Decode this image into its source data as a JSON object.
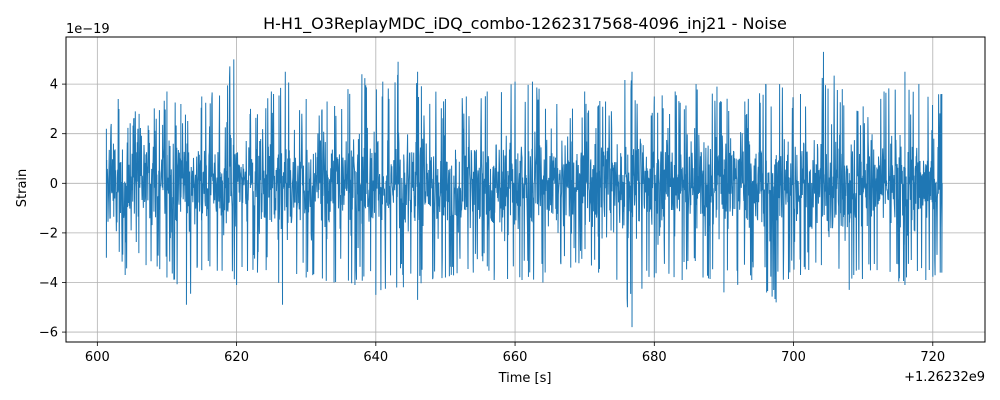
{
  "chart_data": {
    "type": "line",
    "title": "H-H1_O3ReplayMDC_iDQ_combo-1262317568-4096_inj21 - Noise",
    "xlabel": "Time [s]",
    "ylabel": "Strain",
    "x_offset_label": "+1.26232e9",
    "y_scale_label": "1e−19",
    "xlim": [
      595.5,
      727.5
    ],
    "ylim": [
      -6.4,
      5.9
    ],
    "x_ticks": [
      600,
      620,
      640,
      660,
      680,
      700,
      720
    ],
    "x_tick_labels": [
      "600",
      "620",
      "640",
      "660",
      "680",
      "700",
      "720"
    ],
    "y_ticks": [
      -6,
      -4,
      -2,
      0,
      2,
      4
    ],
    "y_tick_labels": [
      "−6",
      "−4",
      "−2",
      "0",
      "2",
      "4"
    ],
    "grid": true,
    "line_color": "#1f77b4",
    "series": [
      {
        "x_start": 601.3,
        "x_end": 721.3,
        "envelope_top": [
          [
            601.3,
            2.2
          ],
          [
            603,
            3.4
          ],
          [
            606,
            2.8
          ],
          [
            610,
            3.7
          ],
          [
            612,
            3.2
          ],
          [
            615,
            3.5
          ],
          [
            619.6,
            5.0
          ],
          [
            622,
            3.0
          ],
          [
            625,
            3.7
          ],
          [
            627,
            4.5
          ],
          [
            630,
            3.4
          ],
          [
            633,
            3.3
          ],
          [
            636,
            3.8
          ],
          [
            638,
            4.4
          ],
          [
            641,
            4.1
          ],
          [
            643.2,
            4.9
          ],
          [
            646,
            4.5
          ],
          [
            650,
            3.4
          ],
          [
            653,
            3.5
          ],
          [
            656,
            3.7
          ],
          [
            660,
            4.1
          ],
          [
            662.5,
            4.1
          ],
          [
            666,
            3.2
          ],
          [
            670,
            3.7
          ],
          [
            673,
            3.3
          ],
          [
            676.8,
            4.5
          ],
          [
            680,
            3.5
          ],
          [
            683,
            3.7
          ],
          [
            686,
            4.0
          ],
          [
            689,
            3.9
          ],
          [
            693,
            3.3
          ],
          [
            696,
            4.0
          ],
          [
            698,
            4.0
          ],
          [
            701,
            3.6
          ],
          [
            704.3,
            5.3
          ],
          [
            707,
            3.8
          ],
          [
            710,
            3.1
          ],
          [
            713,
            3.7
          ],
          [
            716,
            4.5
          ],
          [
            718,
            4.0
          ],
          [
            721.3,
            3.6
          ]
        ],
        "envelope_bottom": [
          [
            601.3,
            -3.0
          ],
          [
            604,
            -3.7
          ],
          [
            607,
            -3.3
          ],
          [
            610,
            -3.8
          ],
          [
            612.8,
            -4.9
          ],
          [
            615,
            -3.5
          ],
          [
            620,
            -4.1
          ],
          [
            623,
            -3.6
          ],
          [
            626.6,
            -4.9
          ],
          [
            630,
            -3.8
          ],
          [
            634,
            -4.0
          ],
          [
            637,
            -4.1
          ],
          [
            640,
            -4.5
          ],
          [
            643,
            -4.2
          ],
          [
            646,
            -4.7
          ],
          [
            650,
            -3.8
          ],
          [
            654,
            -3.6
          ],
          [
            657,
            -3.9
          ],
          [
            661,
            -3.9
          ],
          [
            664,
            -4.0
          ],
          [
            668,
            -3.4
          ],
          [
            672,
            -3.6
          ],
          [
            676.8,
            -5.8
          ],
          [
            680,
            -3.8
          ],
          [
            684,
            -3.9
          ],
          [
            687,
            -3.8
          ],
          [
            690,
            -4.4
          ],
          [
            694,
            -3.9
          ],
          [
            697.5,
            -4.8
          ],
          [
            701,
            -3.7
          ],
          [
            704,
            -3.3
          ],
          [
            708,
            -4.3
          ],
          [
            712,
            -3.5
          ],
          [
            716,
            -4.1
          ],
          [
            719,
            -3.9
          ],
          [
            721.3,
            -3.6
          ]
        ],
        "core_sigma": 1.0,
        "sample_count": 2600
      }
    ]
  }
}
